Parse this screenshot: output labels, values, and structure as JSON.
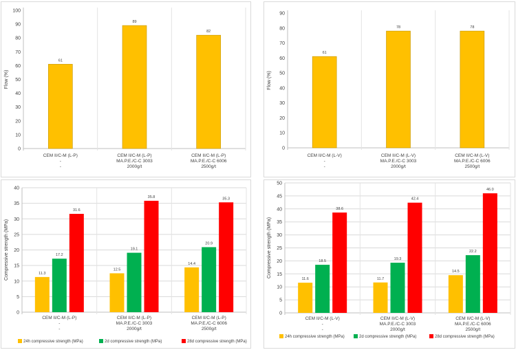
{
  "colors": {
    "flow_bar": "#FFC000",
    "strength_24h": "#FFC000",
    "strength_2d": "#00B050",
    "strength_28d": "#FF0000",
    "grid": "#d9d9d9",
    "axis_text": "#404040"
  },
  "chart_data": [
    {
      "type": "bar",
      "title": "",
      "xlabel": "",
      "ylabel": "Flow (%)",
      "ylim": [
        0,
        100
      ],
      "yticks": [
        0,
        10,
        20,
        30,
        40,
        50,
        60,
        70,
        80,
        90,
        100
      ],
      "grid": false,
      "categories": [
        [
          "CEM II/C-M (L-P)",
          "-",
          "-"
        ],
        [
          "CEM II/C-M (L-P)",
          "MA.P.E./C-C 3003",
          "2000g/t"
        ],
        [
          "CEM II/C-M (L-P)",
          "MA.P.E./C-C 6006",
          "2500g/t"
        ]
      ],
      "series": [
        {
          "values": [
            61,
            89,
            82
          ],
          "labels": [
            "61",
            "89",
            "82"
          ]
        }
      ]
    },
    {
      "type": "bar",
      "title": "",
      "xlabel": "",
      "ylabel": "Flow (%)",
      "ylim": [
        0,
        90
      ],
      "yticks": [
        0,
        10,
        20,
        30,
        40,
        50,
        60,
        70,
        80,
        90
      ],
      "grid": false,
      "categories": [
        [
          "CEM II/C-M (L-V)",
          "-",
          "-"
        ],
        [
          "CEM II/C-M (L-V)",
          "MA.P.E./C-C 3003",
          "2000g/t"
        ],
        [
          "CEM II/C-M (L-V)",
          "MA.P.E./C-C 6006",
          "2500g/t"
        ]
      ],
      "series": [
        {
          "values": [
            61,
            78,
            78
          ],
          "labels": [
            "61",
            "78",
            "78"
          ]
        }
      ]
    },
    {
      "type": "bar",
      "title": "",
      "xlabel": "",
      "ylabel": "Compressive strength (MPa)",
      "ylim": [
        0,
        40
      ],
      "yticks": [
        0,
        5,
        10,
        15,
        20,
        25,
        30,
        35,
        40
      ],
      "grid": true,
      "legend": "bottom",
      "categories": [
        [
          "CEM II/C-M (L-P)",
          "-",
          "-"
        ],
        [
          "CEM II/C-M (L-P)",
          "MA.P.E./C-C 3003",
          "2000g/t"
        ],
        [
          "CEM II/C-M (L-P)",
          "MA.P.E./C-C 6006",
          "2500g/t"
        ]
      ],
      "series": [
        {
          "name": "24h compressive strength (MPa)",
          "values": [
            11.3,
            12.5,
            14.4
          ],
          "labels": [
            "11.3",
            "12.5",
            "14.4"
          ]
        },
        {
          "name": "2d compressive strength (MPa)",
          "values": [
            17.2,
            19.1,
            20.9
          ],
          "labels": [
            "17.2",
            "19.1",
            "20.9"
          ]
        },
        {
          "name": "28d compressive strength (MPa)",
          "values": [
            31.6,
            35.8,
            35.3
          ],
          "labels": [
            "31.6",
            "35.8",
            "35.3"
          ]
        }
      ]
    },
    {
      "type": "bar",
      "title": "",
      "xlabel": "",
      "ylabel": "Compressive strength (MPa)",
      "ylim": [
        0,
        50
      ],
      "yticks": [
        0,
        5,
        10,
        15,
        20,
        25,
        30,
        35,
        40,
        45,
        50
      ],
      "grid": true,
      "legend": "bottom",
      "categories": [
        [
          "CEM II/C-M (L-V)",
          "-",
          "-"
        ],
        [
          "CEM II/C-M (L-V)",
          "MA.P.E./C-C 3003",
          "2000g/t"
        ],
        [
          "CEM II/C-M (L-V)",
          "MA.P.E./C-C 6006",
          "2500g/t"
        ]
      ],
      "series": [
        {
          "name": "24h compressive strength (MPa)",
          "values": [
            11.6,
            11.7,
            14.5
          ],
          "labels": [
            "11.6",
            "11.7",
            "14.5"
          ]
        },
        {
          "name": "2d compressive strength (MPa)",
          "values": [
            18.5,
            19.3,
            22.2
          ],
          "labels": [
            "18.5",
            "19.3",
            "22.2"
          ]
        },
        {
          "name": "28d compressive strength (MPa)",
          "values": [
            38.6,
            42.4,
            46.0
          ],
          "labels": [
            "38.6",
            "42.4",
            "46.0"
          ]
        }
      ]
    }
  ]
}
